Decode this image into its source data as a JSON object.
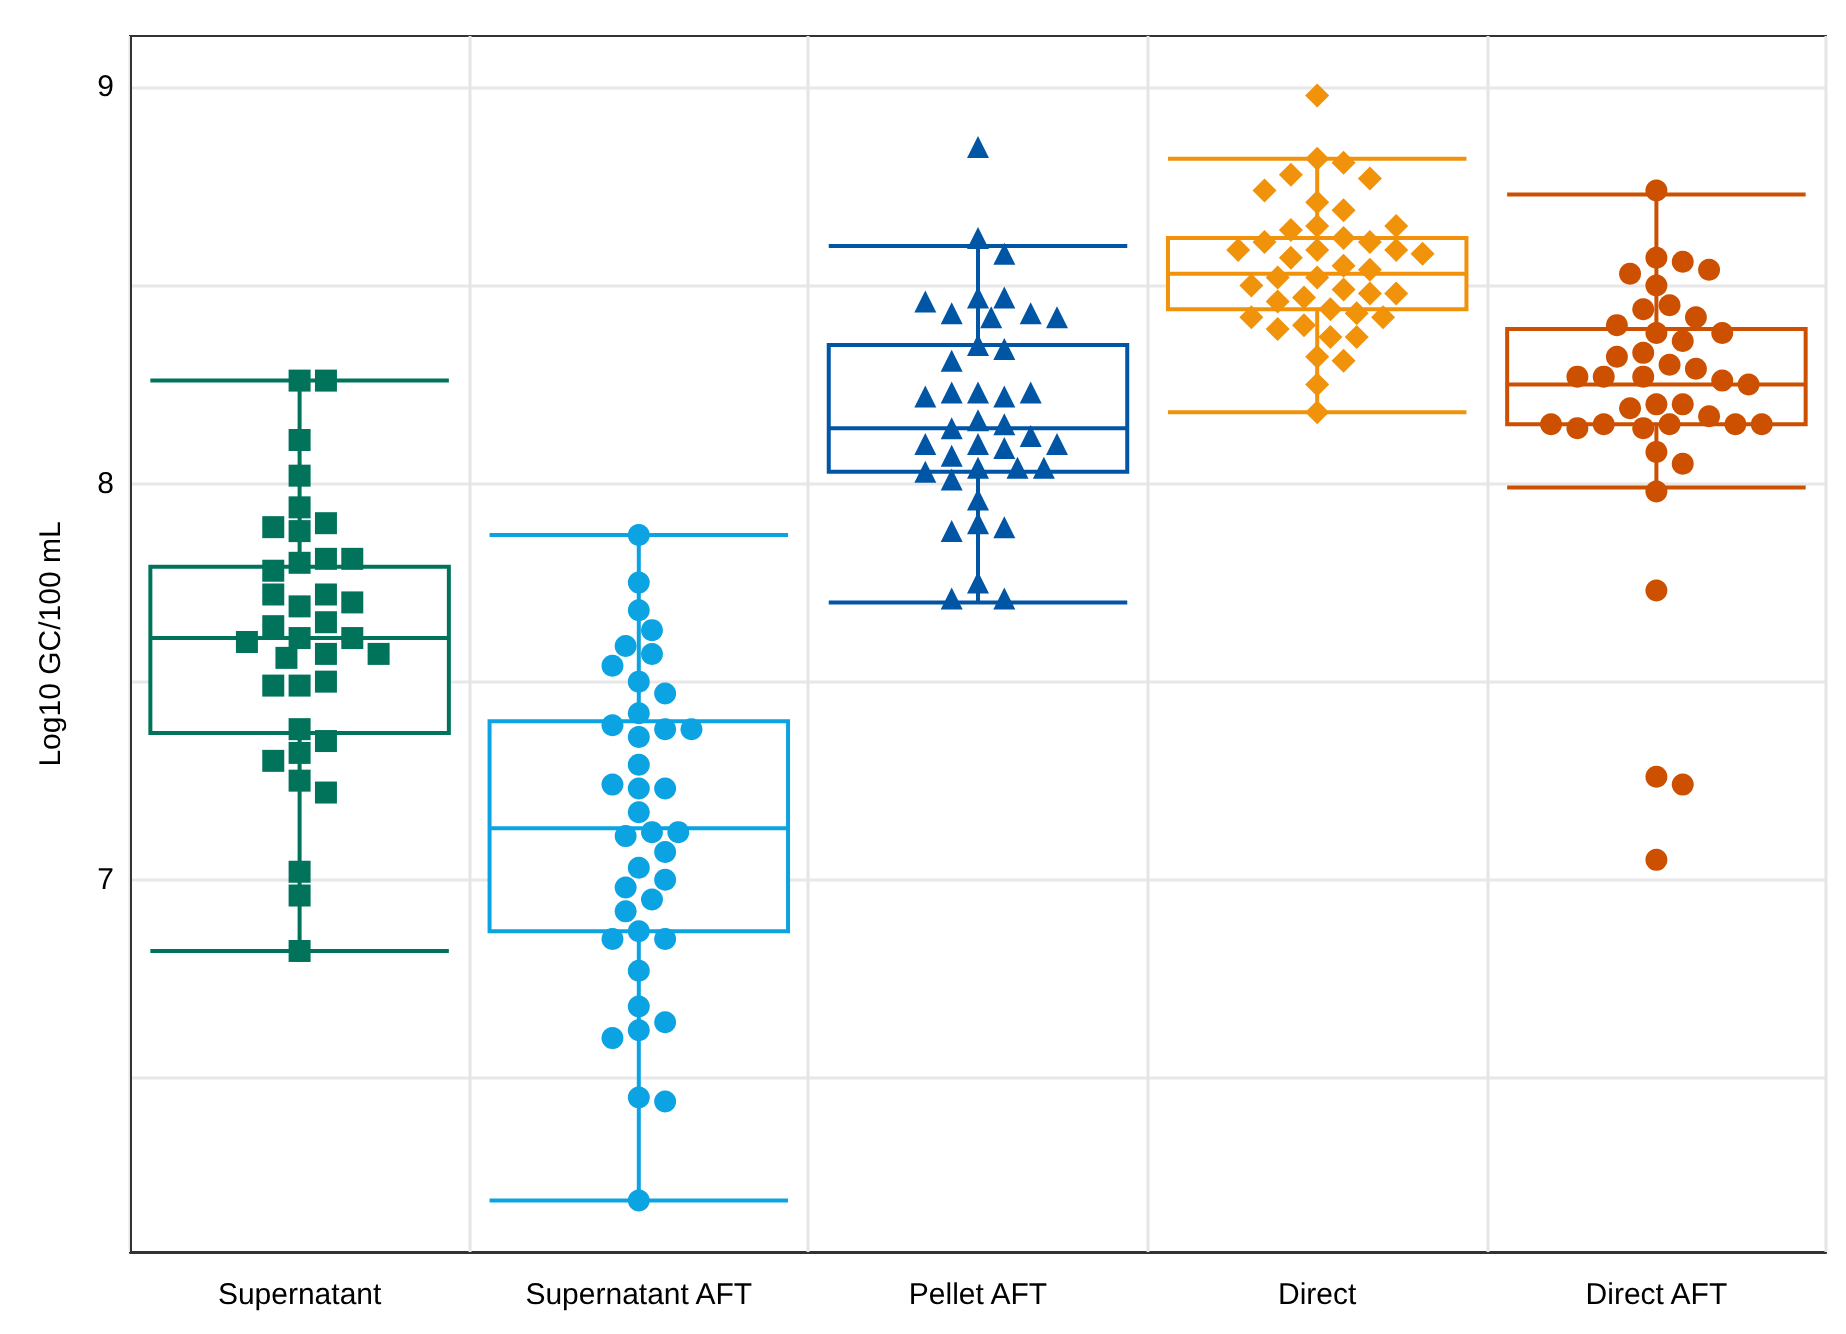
{
  "chart_data": {
    "type": "box",
    "ylabel": "Log10 GC/100 mL",
    "categories": [
      "Supernatant",
      "Supernatant AFT",
      "Pellet AFT",
      "Direct",
      "Direct AFT"
    ],
    "colors": [
      "#00735a",
      "#0ba3e2",
      "#0055a4",
      "#f0920a",
      "#cc5000"
    ],
    "boxes": [
      {
        "low": 6.82,
        "q1": 7.37,
        "median": 7.61,
        "q3": 7.79,
        "high": 8.26
      },
      {
        "low": 6.19,
        "q1": 6.87,
        "median": 7.13,
        "q3": 7.4,
        "high": 7.87
      },
      {
        "low": 7.7,
        "q1": 8.03,
        "median": 8.14,
        "q3": 8.35,
        "high": 8.6
      },
      {
        "low": 8.18,
        "q1": 8.44,
        "median": 8.53,
        "q3": 8.62,
        "high": 8.82
      },
      {
        "low": 7.99,
        "q1": 8.15,
        "median": 8.25,
        "q3": 8.39,
        "high": 8.73
      }
    ],
    "series": [
      {
        "type": "scatter",
        "color": "#00735a",
        "marker": "square",
        "x": [
          "Supernatant",
          "Supernatant",
          "Supernatant",
          "Supernatant",
          "Supernatant",
          "Supernatant",
          "Supernatant",
          "Supernatant",
          "Supernatant",
          "Supernatant",
          "Supernatant",
          "Supernatant",
          "Supernatant",
          "Supernatant",
          "Supernatant",
          "Supernatant",
          "Supernatant",
          "Supernatant",
          "Supernatant",
          "Supernatant",
          "Supernatant",
          "Supernatant",
          "Supernatant",
          "Supernatant",
          "Supernatant",
          "Supernatant",
          "Supernatant",
          "Supernatant",
          "Supernatant",
          "Supernatant",
          "Supernatant",
          "Supernatant",
          "Supernatant",
          "Supernatant",
          "Supernatant",
          "Supernatant"
        ],
        "values": [
          8.26,
          8.26,
          8.11,
          8.02,
          7.94,
          7.9,
          7.88,
          7.89,
          7.8,
          7.81,
          7.78,
          7.81,
          7.69,
          7.72,
          7.72,
          7.7,
          7.65,
          7.61,
          7.64,
          7.61,
          7.6,
          7.57,
          7.56,
          7.57,
          7.49,
          7.5,
          7.49,
          7.38,
          7.35,
          7.32,
          7.25,
          7.3,
          7.22,
          7.02,
          6.96,
          6.82
        ]
      },
      {
        "type": "scatter",
        "color": "#0ba3e2",
        "marker": "circle",
        "x": [
          "Supernatant AFT",
          "Supernatant AFT",
          "Supernatant AFT",
          "Supernatant AFT",
          "Supernatant AFT",
          "Supernatant AFT",
          "Supernatant AFT",
          "Supernatant AFT",
          "Supernatant AFT",
          "Supernatant AFT",
          "Supernatant AFT",
          "Supernatant AFT",
          "Supernatant AFT",
          "Supernatant AFT",
          "Supernatant AFT",
          "Supernatant AFT",
          "Supernatant AFT",
          "Supernatant AFT",
          "Supernatant AFT",
          "Supernatant AFT",
          "Supernatant AFT",
          "Supernatant AFT",
          "Supernatant AFT",
          "Supernatant AFT",
          "Supernatant AFT",
          "Supernatant AFT",
          "Supernatant AFT",
          "Supernatant AFT",
          "Supernatant AFT",
          "Supernatant AFT",
          "Supernatant AFT",
          "Supernatant AFT",
          "Supernatant AFT",
          "Supernatant AFT",
          "Supernatant AFT",
          "Supernatant AFT",
          "Supernatant AFT",
          "Supernatant AFT",
          "Supernatant AFT"
        ],
        "values": [
          7.87,
          7.75,
          7.68,
          7.63,
          7.59,
          7.57,
          7.54,
          7.5,
          7.47,
          7.42,
          7.38,
          7.39,
          7.38,
          7.36,
          7.29,
          7.23,
          7.23,
          7.24,
          7.17,
          7.12,
          7.11,
          7.12,
          7.07,
          7.03,
          7.0,
          6.98,
          6.95,
          6.92,
          6.87,
          6.85,
          6.85,
          6.77,
          6.68,
          6.64,
          6.62,
          6.6,
          6.45,
          6.44,
          6.19
        ]
      },
      {
        "type": "scatter",
        "color": "#0055a4",
        "marker": "triangle",
        "x": [
          "Pellet AFT",
          "Pellet AFT",
          "Pellet AFT",
          "Pellet AFT",
          "Pellet AFT",
          "Pellet AFT",
          "Pellet AFT",
          "Pellet AFT",
          "Pellet AFT",
          "Pellet AFT",
          "Pellet AFT",
          "Pellet AFT",
          "Pellet AFT",
          "Pellet AFT",
          "Pellet AFT",
          "Pellet AFT",
          "Pellet AFT",
          "Pellet AFT",
          "Pellet AFT",
          "Pellet AFT",
          "Pellet AFT",
          "Pellet AFT",
          "Pellet AFT",
          "Pellet AFT",
          "Pellet AFT",
          "Pellet AFT",
          "Pellet AFT",
          "Pellet AFT",
          "Pellet AFT",
          "Pellet AFT",
          "Pellet AFT",
          "Pellet AFT",
          "Pellet AFT",
          "Pellet AFT",
          "Pellet AFT",
          "Pellet AFT",
          "Pellet AFT",
          "Pellet AFT",
          "Pellet AFT"
        ],
        "values": [
          8.85,
          8.62,
          8.58,
          8.47,
          8.47,
          8.43,
          8.42,
          8.43,
          8.46,
          8.42,
          8.35,
          8.34,
          8.31,
          8.23,
          8.22,
          8.23,
          8.23,
          8.22,
          8.16,
          8.15,
          8.14,
          8.12,
          8.1,
          8.09,
          8.1,
          8.1,
          8.07,
          8.04,
          8.04,
          8.03,
          8.01,
          8.04,
          7.96,
          7.9,
          7.89,
          7.88,
          7.75,
          7.71,
          7.71
        ]
      },
      {
        "type": "scatter",
        "color": "#f0920a",
        "marker": "diamond",
        "x": [
          "Direct",
          "Direct",
          "Direct",
          "Direct",
          "Direct",
          "Direct",
          "Direct",
          "Direct",
          "Direct",
          "Direct",
          "Direct",
          "Direct",
          "Direct",
          "Direct",
          "Direct",
          "Direct",
          "Direct",
          "Direct",
          "Direct",
          "Direct",
          "Direct",
          "Direct",
          "Direct",
          "Direct",
          "Direct",
          "Direct",
          "Direct",
          "Direct",
          "Direct",
          "Direct",
          "Direct",
          "Direct",
          "Direct",
          "Direct",
          "Direct",
          "Direct",
          "Direct",
          "Direct",
          "Direct",
          "Direct",
          "Direct"
        ],
        "values": [
          8.98,
          8.82,
          8.81,
          8.78,
          8.77,
          8.71,
          8.69,
          8.65,
          8.64,
          8.62,
          8.61,
          8.59,
          8.61,
          8.59,
          8.59,
          8.57,
          8.55,
          8.54,
          8.52,
          8.52,
          8.5,
          8.49,
          8.48,
          8.48,
          8.47,
          8.46,
          8.44,
          8.43,
          8.42,
          8.42,
          8.4,
          8.39,
          8.37,
          8.37,
          8.32,
          8.31,
          8.25,
          8.18,
          8.74,
          8.65,
          8.58
        ]
      },
      {
        "type": "scatter",
        "color": "#cc5000",
        "marker": "circle",
        "x": [
          "Direct AFT",
          "Direct AFT",
          "Direct AFT",
          "Direct AFT",
          "Direct AFT",
          "Direct AFT",
          "Direct AFT",
          "Direct AFT",
          "Direct AFT",
          "Direct AFT",
          "Direct AFT",
          "Direct AFT",
          "Direct AFT",
          "Direct AFT",
          "Direct AFT",
          "Direct AFT",
          "Direct AFT",
          "Direct AFT",
          "Direct AFT",
          "Direct AFT",
          "Direct AFT",
          "Direct AFT",
          "Direct AFT",
          "Direct AFT",
          "Direct AFT",
          "Direct AFT",
          "Direct AFT",
          "Direct AFT",
          "Direct AFT",
          "Direct AFT",
          "Direct AFT",
          "Direct AFT",
          "Direct AFT",
          "Direct AFT",
          "Direct AFT",
          "Direct AFT",
          "Direct AFT",
          "Direct AFT",
          "Direct AFT",
          "Direct AFT"
        ],
        "values": [
          8.74,
          8.57,
          8.56,
          8.53,
          8.54,
          8.5,
          8.45,
          8.44,
          8.42,
          8.4,
          8.38,
          8.38,
          8.36,
          8.33,
          8.32,
          8.3,
          8.29,
          8.27,
          8.27,
          8.26,
          8.27,
          8.25,
          8.2,
          8.2,
          8.19,
          8.17,
          8.15,
          8.15,
          8.15,
          8.14,
          8.14,
          8.15,
          8.15,
          8.08,
          8.05,
          7.98,
          7.73,
          7.26,
          7.24,
          7.05
        ]
      }
    ],
    "ylim": [
      6.06,
      9.13
    ],
    "yticks": [
      {
        "value": 6.5,
        "label": null
      },
      7,
      {
        "value": 7.5,
        "label": null
      },
      8,
      {
        "value": 8.5,
        "label": null
      },
      9
    ],
    "grid": true
  }
}
